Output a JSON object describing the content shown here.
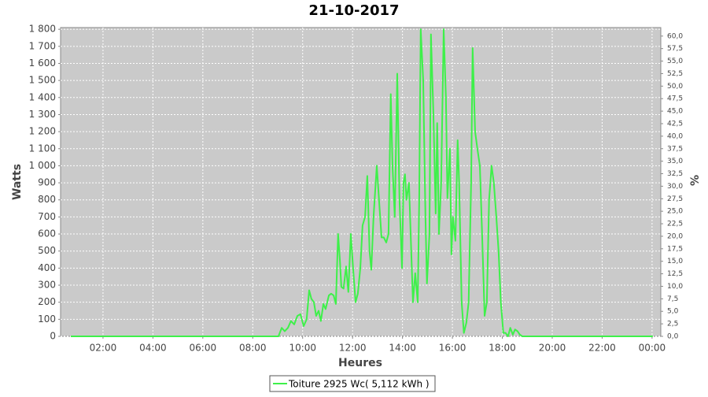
{
  "chart_data": {
    "type": "line",
    "title": "21-10-2017",
    "x_label": "Heures",
    "y_label": "Watts",
    "y2_label": "%",
    "xlim": [
      0.3,
      24.35
    ],
    "xticks": [
      {
        "value": 2,
        "label": "02:00"
      },
      {
        "value": 4,
        "label": "04:00"
      },
      {
        "value": 6,
        "label": "06:00"
      },
      {
        "value": 8,
        "label": "08:00"
      },
      {
        "value": 10,
        "label": "10:00"
      },
      {
        "value": 12,
        "label": "12:00"
      },
      {
        "value": 14,
        "label": "14:00"
      },
      {
        "value": 16,
        "label": "16:00"
      },
      {
        "value": 18,
        "label": "18:00"
      },
      {
        "value": 20,
        "label": "20:00"
      },
      {
        "value": 22,
        "label": "22:00"
      },
      {
        "value": 24,
        "label": "00:00"
      }
    ],
    "ylim": [
      0,
      1810
    ],
    "yticks": [
      0,
      100,
      200,
      300,
      400,
      500,
      600,
      700,
      800,
      900,
      {
        "value": 1000,
        "label": "1 000"
      },
      {
        "value": 1100,
        "label": "1 100"
      },
      {
        "value": 1200,
        "label": "1 200"
      },
      {
        "value": 1300,
        "label": "1 300"
      },
      {
        "value": 1400,
        "label": "1 400"
      },
      {
        "value": 1500,
        "label": "1 500"
      },
      {
        "value": 1600,
        "label": "1 600"
      },
      {
        "value": 1700,
        "label": "1 700"
      },
      {
        "value": 1800,
        "label": "1 800"
      }
    ],
    "y2lim": [
      0,
      61.7
    ],
    "y2ticks": [
      {
        "value": 0,
        "label": "0,0"
      },
      {
        "value": 2.5,
        "label": "2,5"
      },
      {
        "value": 5,
        "label": "5,0"
      },
      {
        "value": 7.5,
        "label": "7,5"
      },
      {
        "value": 10,
        "label": "10,0"
      },
      {
        "value": 12.5,
        "label": "12,5"
      },
      {
        "value": 15,
        "label": "15,0"
      },
      {
        "value": 17.5,
        "label": "17,5"
      },
      {
        "value": 20,
        "label": "20,0"
      },
      {
        "value": 22.5,
        "label": "22,5"
      },
      {
        "value": 25,
        "label": "25,0"
      },
      {
        "value": 27.5,
        "label": "27,5"
      },
      {
        "value": 30,
        "label": "30,0"
      },
      {
        "value": 32.5,
        "label": "32,5"
      },
      {
        "value": 35,
        "label": "35,0"
      },
      {
        "value": 37.5,
        "label": "37,5"
      },
      {
        "value": 40,
        "label": "40,0"
      },
      {
        "value": 42.5,
        "label": "42,5"
      },
      {
        "value": 45,
        "label": "45,0"
      },
      {
        "value": 47.5,
        "label": "47,5"
      },
      {
        "value": 50,
        "label": "50,0"
      },
      {
        "value": 52.5,
        "label": "52,5"
      },
      {
        "value": 55,
        "label": "55,0"
      },
      {
        "value": 57.5,
        "label": "57,5"
      },
      {
        "value": 60,
        "label": "60,0"
      }
    ],
    "grid": true,
    "legend": "bottom",
    "x": [
      0.71,
      9.03,
      9.16,
      9.28,
      9.41,
      9.53,
      9.66,
      9.79,
      9.91,
      10.04,
      10.16,
      10.26,
      10.35,
      10.45,
      10.54,
      10.64,
      10.73,
      10.83,
      10.92,
      11.05,
      11.14,
      11.24,
      11.33,
      11.42,
      11.49,
      11.55,
      11.64,
      11.74,
      11.83,
      11.93,
      12.02,
      12.12,
      12.21,
      12.31,
      12.4,
      12.5,
      12.59,
      12.68,
      12.75,
      12.84,
      12.97,
      13.06,
      13.16,
      13.25,
      13.35,
      13.44,
      13.53,
      13.6,
      13.69,
      13.79,
      13.88,
      13.98,
      14.04,
      14.1,
      14.16,
      14.26,
      14.35,
      14.42,
      14.51,
      14.61,
      14.67,
      14.73,
      14.83,
      14.92,
      14.98,
      15.08,
      15.14,
      15.24,
      15.33,
      15.39,
      15.46,
      15.55,
      15.65,
      15.74,
      15.8,
      15.9,
      15.96,
      16.02,
      16.12,
      16.21,
      16.27,
      16.37,
      16.46,
      16.56,
      16.65,
      16.75,
      16.81,
      16.91,
      17.0,
      17.1,
      17.19,
      17.29,
      17.38,
      17.47,
      17.57,
      17.66,
      17.76,
      17.85,
      17.94,
      18.04,
      18.13,
      18.23,
      18.32,
      18.42,
      18.51,
      18.61,
      18.7,
      18.8,
      24.03
    ],
    "series": [
      {
        "name": "Toiture 2925 Wc( 5,112 kWh )",
        "color": "#3ef04a",
        "values": [
          0,
          0,
          50,
          30,
          50,
          90,
          70,
          120,
          130,
          60,
          100,
          270,
          220,
          200,
          120,
          150,
          90,
          190,
          160,
          240,
          250,
          240,
          190,
          600,
          450,
          290,
          280,
          410,
          260,
          600,
          400,
          200,
          250,
          400,
          650,
          700,
          940,
          500,
          390,
          700,
          1000,
          800,
          580,
          580,
          550,
          600,
          1420,
          1000,
          700,
          1540,
          800,
          400,
          900,
          950,
          800,
          900,
          500,
          200,
          370,
          200,
          800,
          1800,
          1500,
          700,
          310,
          600,
          1770,
          1300,
          720,
          1250,
          600,
          900,
          1800,
          1400,
          810,
          1100,
          480,
          700,
          560,
          1150,
          900,
          200,
          20,
          80,
          200,
          900,
          1690,
          1200,
          1100,
          1000,
          600,
          120,
          200,
          800,
          1000,
          900,
          700,
          500,
          200,
          20,
          20,
          0,
          50,
          10,
          40,
          30,
          10,
          0,
          0
        ]
      }
    ]
  }
}
